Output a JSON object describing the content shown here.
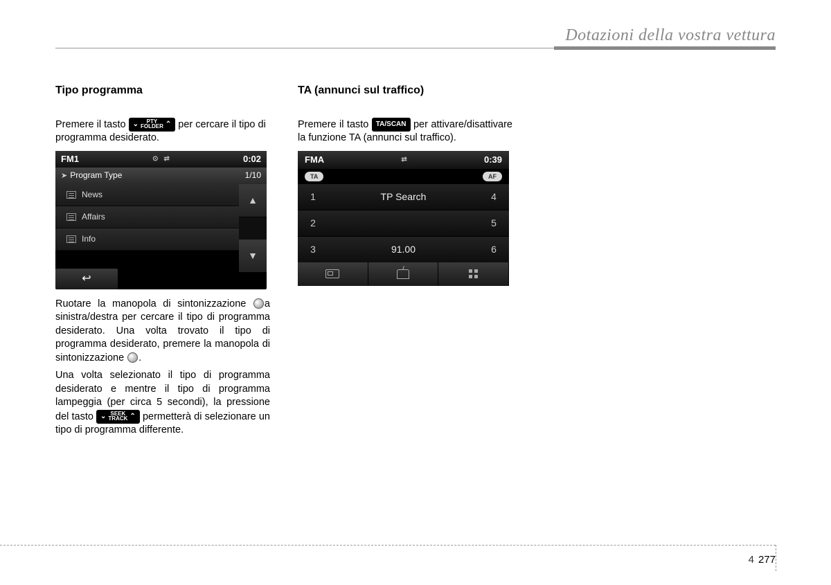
{
  "header": {
    "title": "Dotazioni della vostra vettura"
  },
  "col1": {
    "title": "Tipo programma",
    "p1a": "Premere il tasto ",
    "p1b": " per cercare il tipo di programma desiderato.",
    "btn_pty_top": "PTY",
    "btn_pty_bottom": "FOLDER",
    "shot": {
      "band": "FM1",
      "time": "0:02",
      "subtitle": "Program Type",
      "counter": "1/10",
      "rows": [
        "News",
        "Affairs",
        "Info"
      ]
    },
    "p2": "Ruotare la manopola di sintonizzazione ",
    "p2b": "a sinistra/destra per cercare il tipo di programma desiderato. Una volta trovato il tipo di programma desiderato, premere la manopola di sintonizzazione ",
    "p2c": ".",
    "p3a": "Una volta selezionato il tipo di programma desiderato e mentre il tipo di programma lampeggia (per circa 5 secondi), la pressione del tasto ",
    "p3b": " permetterà di selezionare un tipo di programma differente.",
    "btn_seek_top": "SEEK",
    "btn_seek_bottom": "TRACK"
  },
  "col2": {
    "title": "TA (annunci sul traffico)",
    "p1a": "Premere il tasto ",
    "btn_tascan": "TA/SCAN",
    "p1b": " per attivare/disattivare la funzione TA (annunci sul traffico).",
    "shot": {
      "band": "FMA",
      "time": "0:39",
      "badge_left": "TA",
      "badge_right": "AF",
      "center1": "TP Search",
      "center2": "91.00",
      "left_nums": [
        "1",
        "2",
        "3"
      ],
      "right_nums": [
        "4",
        "5",
        "6"
      ]
    }
  },
  "footer": {
    "chapter": "4",
    "page": "277"
  }
}
